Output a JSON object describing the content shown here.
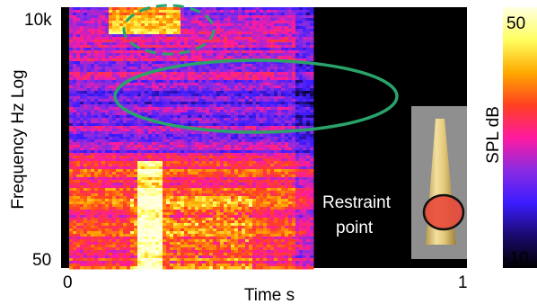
{
  "chart_data": {
    "type": "heatmap",
    "title": "",
    "xlabel": "Time  s",
    "ylabel": "Frequency  Hz  Log",
    "x_ticks": [
      "0",
      "1"
    ],
    "xlim": [
      0,
      1
    ],
    "y_ticks": [
      "50",
      "10k"
    ],
    "ylim": [
      50,
      10000
    ],
    "y_scale": "log",
    "colorbar": {
      "label": "SPL  dB",
      "min_label": "-10",
      "max_label": "50",
      "range": [
        -10,
        50
      ],
      "colormap": [
        "#000000",
        "#1a0a6e",
        "#3b1cff",
        "#8a2be2",
        "#ff1aa0",
        "#ff4020",
        "#ffaa00",
        "#ffff60",
        "#ffffe0"
      ]
    },
    "signal_time_range": [
      0.02,
      0.62
    ],
    "annotation": {
      "line1": "Restraint",
      "line2": "point"
    },
    "highlight_color": "#2aa36a",
    "grid": false
  }
}
